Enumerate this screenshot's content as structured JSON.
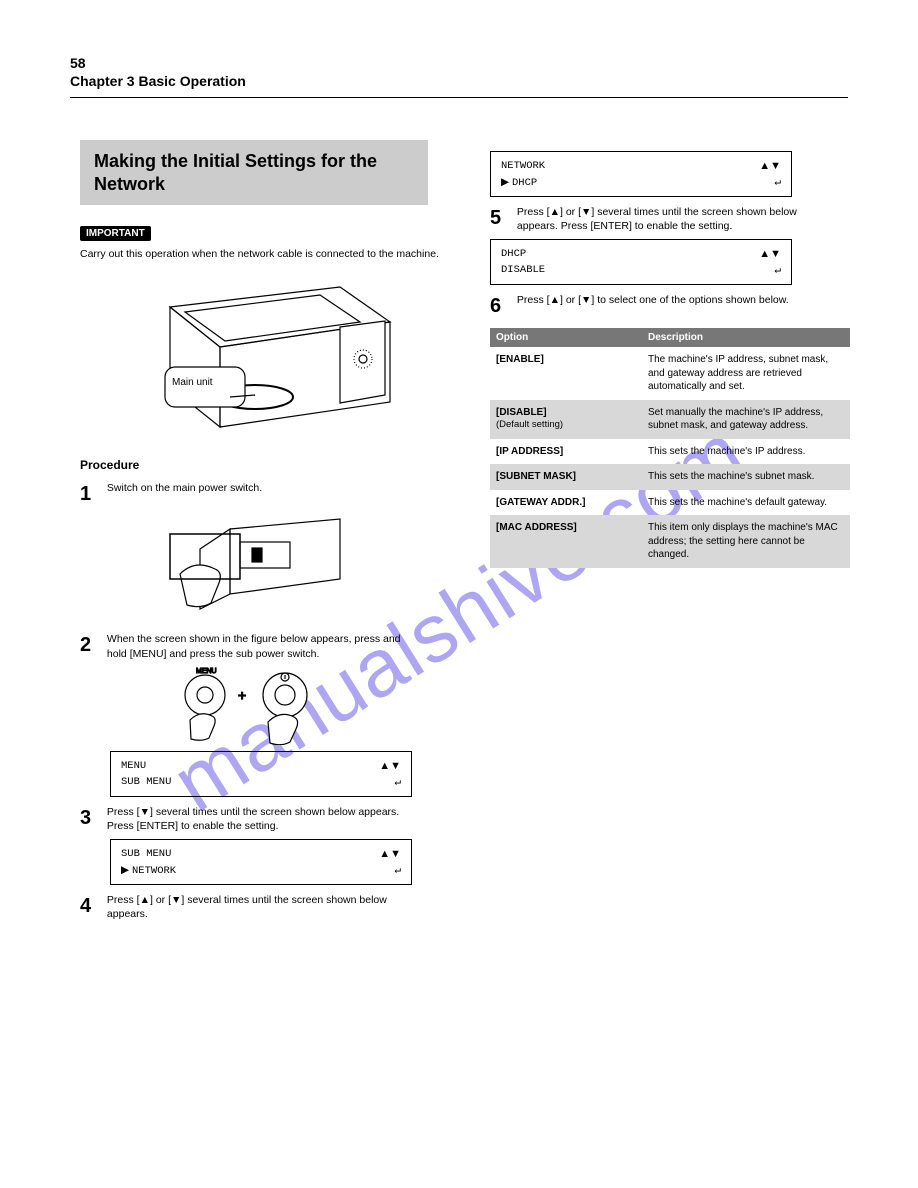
{
  "page_number": "58",
  "chapter_title": "Chapter 3 Basic Operation",
  "watermark_text": "manualshive.com",
  "left": {
    "section_band": "Making the Initial Settings for the Network",
    "important_badge": "IMPORTANT",
    "important_text": "Carry out this operation when the network cable is connected to the machine.",
    "main_unit_label": "Main unit",
    "procedure_heading": "Procedure",
    "step1_num": "1",
    "step1_text": "Switch on the main power switch.",
    "step2_num": "2",
    "step2_first": "When the screen shown in the figure below appears, press and hold",
    "step2_menu": "[MENU]",
    "step2_second": " and press the sub power switch.",
    "lcd_a": {
      "r1l": "MENU",
      "r2l": "SUB MENU"
    },
    "step3_num": "3",
    "step3_text_1": "Press [▼] several times until the screen shown below appears. Press [ENTER] to enable the setting.",
    "lcd_b": {
      "r1l": "SUB MENU",
      "r2l": "NETWORK"
    },
    "step4_num": "4",
    "step4_text_1": "Press [▲] or [▼] several times until the screen shown below appears."
  },
  "right": {
    "lcd_c": {
      "r1l": "NETWORK",
      "r2l": "DHCP"
    },
    "step5_num": "5",
    "step5_text_1": "Press [▲] or [▼] several times until the screen shown below appears. Press [ENTER] to enable the setting.",
    "lcd_d": {
      "r1l": "DHCP",
      "r2l": "DISABLE"
    },
    "step6_num": "6",
    "step6_text_1": "Press [▲] or [▼] to select one of the options shown below.",
    "table": {
      "head_option": "Option",
      "head_desc": "Description",
      "rows": [
        {
          "opt": "[ENABLE]",
          "sub": "",
          "desc": "The machine's IP address, subnet mask, and gateway address are retrieved automatically and set.",
          "shade": false
        },
        {
          "opt": "[DISABLE]",
          "sub": "(Default setting)",
          "desc": "Set manually the machine's IP address, subnet mask, and gateway address.",
          "shade": true
        },
        {
          "opt": "[IP ADDRESS]",
          "sub": "",
          "desc": "This sets the machine's IP address.",
          "shade": false
        },
        {
          "opt": "[SUBNET MASK]",
          "sub": "",
          "desc": "This sets the machine's subnet mask.",
          "shade": true
        },
        {
          "opt": "[GATEWAY ADDR.]",
          "sub": "",
          "desc": "This sets the machine's default gateway.",
          "shade": false
        },
        {
          "opt": "[MAC ADDRESS]",
          "sub": "",
          "desc": "This item only displays the machine's MAC address; the setting here cannot be changed.",
          "shade": true
        }
      ]
    }
  },
  "colors": {
    "band_bg": "#cccccc",
    "table_head_bg": "#777777",
    "table_head_fg": "#ffffff",
    "shade_bg": "#d8d8d8",
    "watermark_color": "#6c5fe8"
  }
}
